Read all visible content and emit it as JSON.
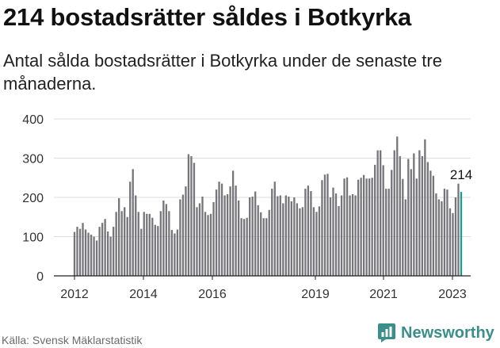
{
  "title": "214 bostadsrätter såldes i Botkyrka",
  "subtitle": "Antal sålda bostadsrätter i Botkyrka under de senaste tre månaderna.",
  "source": "Källa: Svensk Mäklarstatistik",
  "brand": {
    "name": "Newsworthy",
    "icon": "newsworthy-logo-icon",
    "color": "#3a8f8a"
  },
  "chart_data": {
    "type": "bar",
    "title": "214 bostadsrätter såldes i Botkyrka",
    "xlabel": "",
    "ylabel": "",
    "ylim": [
      0,
      400
    ],
    "yticks": [
      0,
      100,
      200,
      300,
      400
    ],
    "xtick_labels": [
      "2012",
      "2014",
      "2016",
      "2019",
      "2021",
      "2023"
    ],
    "grid": true,
    "bar_color": "#75757a",
    "highlight_color": "#1e9a94",
    "annotation": {
      "label": "214",
      "target": "last"
    },
    "values": [
      112,
      125,
      120,
      135,
      118,
      110,
      105,
      100,
      90,
      125,
      135,
      145,
      113,
      100,
      125,
      163,
      198,
      165,
      175,
      150,
      240,
      272,
      205,
      163,
      120,
      163,
      158,
      158,
      148,
      130,
      127,
      165,
      192,
      183,
      165,
      117,
      108,
      118,
      195,
      207,
      228,
      310,
      305,
      288,
      175,
      185,
      202,
      163,
      155,
      158,
      188,
      220,
      240,
      235,
      205,
      208,
      228,
      268,
      230,
      192,
      147,
      145,
      148,
      200,
      202,
      215,
      180,
      162,
      147,
      147,
      168,
      222,
      240,
      203,
      205,
      185,
      205,
      202,
      190,
      200,
      185,
      172,
      175,
      222,
      230,
      216,
      175,
      163,
      177,
      244,
      258,
      260,
      200,
      225,
      210,
      178,
      205,
      248,
      251,
      205,
      208,
      205,
      245,
      250,
      257,
      248,
      248,
      250,
      283,
      320,
      320,
      282,
      222,
      222,
      270,
      320,
      355,
      305,
      247,
      195,
      298,
      272,
      312,
      248,
      320,
      305,
      348,
      290,
      268,
      255,
      210,
      195,
      190,
      222,
      220,
      172,
      160,
      200,
      235,
      214
    ]
  }
}
